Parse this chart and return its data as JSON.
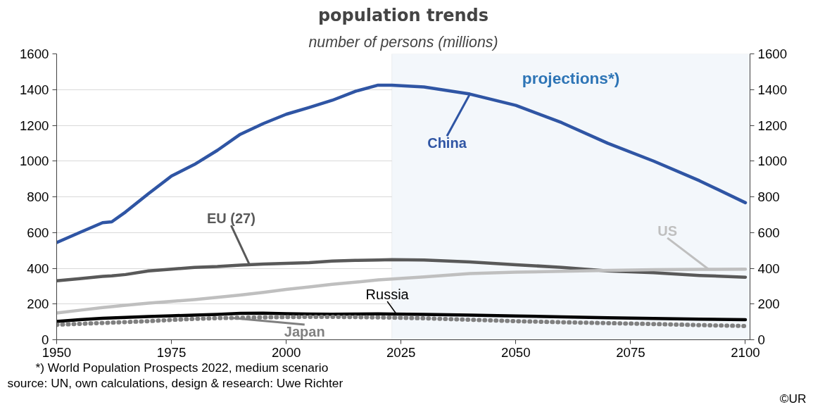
{
  "chart_data": {
    "type": "line",
    "title": "population trends",
    "subtitle": "number of persons (millions)",
    "x": [
      1950,
      1955,
      1960,
      1962,
      1965,
      1970,
      1975,
      1980,
      1985,
      1990,
      1995,
      2000,
      2005,
      2010,
      2015,
      2020,
      2023,
      2030,
      2040,
      2050,
      2060,
      2070,
      2080,
      2090,
      2100
    ],
    "series": [
      {
        "name": "China",
        "color": "#2f55a4",
        "values": [
          544,
          600,
          655,
          660,
          715,
          818,
          916,
          981,
          1060,
          1150,
          1210,
          1262,
          1300,
          1340,
          1390,
          1425,
          1425,
          1415,
          1375,
          1312,
          1215,
          1100,
          1000,
          890,
          767
        ]
      },
      {
        "name": "EU (27)",
        "color": "#595959",
        "values": [
          330,
          342,
          355,
          358,
          365,
          385,
          395,
          405,
          410,
          418,
          424,
          428,
          432,
          440,
          444,
          446,
          448,
          446,
          435,
          420,
          405,
          385,
          375,
          360,
          350
        ]
      },
      {
        "name": "US",
        "color": "#bfbfbf",
        "values": [
          150,
          165,
          180,
          185,
          193,
          205,
          215,
          225,
          237,
          250,
          265,
          282,
          296,
          310,
          322,
          335,
          340,
          352,
          370,
          378,
          383,
          388,
          392,
          394,
          395
        ]
      },
      {
        "name": "Russia",
        "color": "#000000",
        "values": [
          102,
          112,
          120,
          122,
          125,
          130,
          134,
          138,
          142,
          148,
          149,
          146,
          144,
          143,
          144,
          145,
          144,
          142,
          138,
          133,
          128,
          123,
          119,
          115,
          112
        ]
      },
      {
        "name": "Japan",
        "color": "#808080",
        "line_style": "dotted",
        "values": [
          84,
          89,
          94,
          96,
          99,
          104,
          111,
          117,
          121,
          123,
          125,
          127,
          128,
          128,
          127,
          125,
          124,
          120,
          112,
          104,
          98,
          93,
          88,
          82,
          77
        ]
      }
    ],
    "xlim": [
      1950,
      2101
    ],
    "xticks": [
      1950,
      1975,
      2000,
      2025,
      2050,
      2075,
      2100
    ],
    "ylim": [
      0,
      1600
    ],
    "yticks": [
      0,
      200,
      400,
      600,
      800,
      1000,
      1200,
      1400,
      1600
    ],
    "y2lim": [
      0,
      1600
    ],
    "y2ticks": [
      0,
      200,
      400,
      600,
      800,
      1000,
      1200,
      1400,
      1600
    ],
    "bands": [
      {
        "axis": "x",
        "from": 2023,
        "to": 2101,
        "label": "projections*)",
        "color": "#f3f7fb"
      }
    ],
    "grid": "y",
    "annotations": [
      "*) World Population Prospects 2022, medium scenario",
      "source: UN, own calculations, design & research: Uwe Richter",
      "©UR"
    ]
  }
}
